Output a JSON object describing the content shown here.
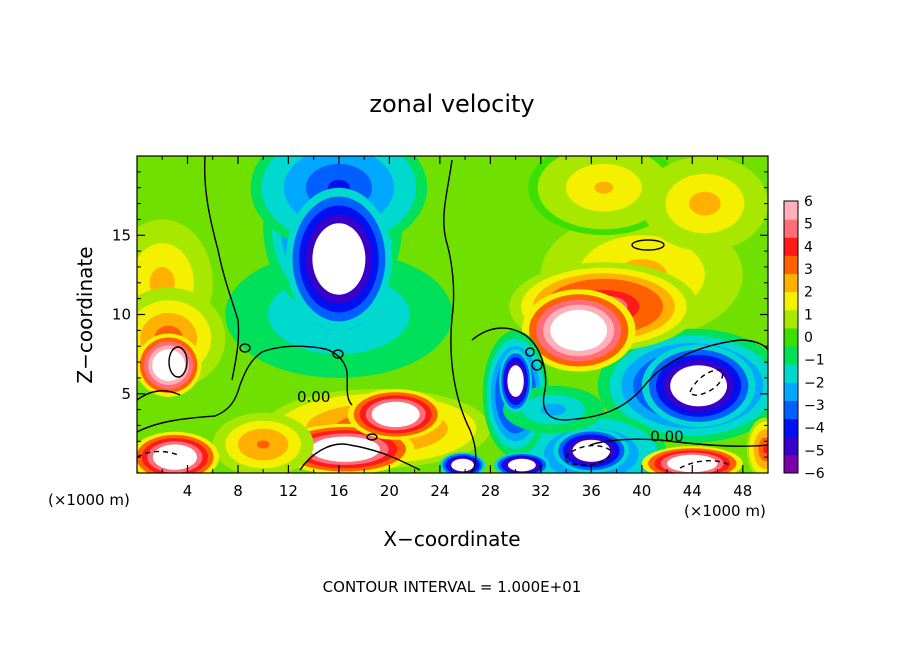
{
  "chart_data": {
    "type": "heatmap",
    "title": "zonal velocity",
    "xlabel": "X−coordinate",
    "ylabel": "Z−coordinate",
    "x_unit_label": "(×1000 m)",
    "x_unit_label_right": "(×1000 m)",
    "xlim": [
      0,
      50
    ],
    "ylim": [
      0,
      20
    ],
    "xticks": [
      4,
      8,
      12,
      16,
      20,
      24,
      28,
      32,
      36,
      40,
      44,
      48
    ],
    "yticks": [
      5,
      10,
      15
    ],
    "colorbar": {
      "min": -6,
      "max": 6,
      "ticks": [
        6,
        5,
        4,
        3,
        2,
        1,
        0,
        -1,
        -2,
        -3,
        -4,
        -5,
        -6
      ],
      "tick_labels": [
        "6",
        "5",
        "4",
        "3",
        "2",
        "1",
        "0",
        "−1",
        "−2",
        "−3",
        "−4",
        "−5",
        "−6"
      ],
      "colors": [
        "#7a00a8",
        "#3800c8",
        "#0010f0",
        "#0060ff",
        "#00a8ff",
        "#00d8d0",
        "#00e05a",
        "#3ce000",
        "#a8e800",
        "#f5f000",
        "#ffb000",
        "#ff6000",
        "#ff1a1a",
        "#ff6e78",
        "#ffb0b8"
      ]
    },
    "features": [
      {
        "x": 16,
        "z": 13.5,
        "value": -9,
        "rx": 4.2,
        "rz": 4.5
      },
      {
        "x": 15.5,
        "z": 15.5,
        "value": -5,
        "rx": 5.5,
        "rz": 5.5
      },
      {
        "x": 16,
        "z": 18,
        "value": -4,
        "rx": 7,
        "rz": 4
      },
      {
        "x": 16,
        "z": 10,
        "value": -2.5,
        "rx": 9,
        "rz": 4
      },
      {
        "x": 2.5,
        "z": 6.8,
        "value": 10,
        "rx": 2.6,
        "rz": 2.0
      },
      {
        "x": 2.5,
        "z": 8.5,
        "value": 3.5,
        "rx": 4.5,
        "rz": 3.2
      },
      {
        "x": 2,
        "z": 12,
        "value": 2.5,
        "rx": 4,
        "rz": 4
      },
      {
        "x": 35,
        "z": 9,
        "value": 10,
        "rx": 4.5,
        "rz": 2.6
      },
      {
        "x": 37,
        "z": 10.5,
        "value": 5,
        "rx": 7.5,
        "rz": 2.8
      },
      {
        "x": 40,
        "z": 12.5,
        "value": 2.5,
        "rx": 8,
        "rz": 4
      },
      {
        "x": 37,
        "z": 18,
        "value": 2,
        "rx": 6,
        "rz": 3
      },
      {
        "x": 45,
        "z": 17,
        "value": 2.5,
        "rx": 5,
        "rz": 3
      },
      {
        "x": 20.5,
        "z": 3.7,
        "value": 9,
        "rx": 3.8,
        "rz": 1.6
      },
      {
        "x": 16.5,
        "z": 1.5,
        "value": 9,
        "rx": 5.5,
        "rz": 1.6
      },
      {
        "x": 19,
        "z": 2.8,
        "value": 4,
        "rx": 9,
        "rz": 2.5
      },
      {
        "x": 10,
        "z": 1.8,
        "value": 3,
        "rx": 4,
        "rz": 2
      },
      {
        "x": 3,
        "z": 1,
        "value": 9,
        "rx": 3.5,
        "rz": 1.6
      },
      {
        "x": 30,
        "z": 5.8,
        "value": -9,
        "rx": 1.3,
        "rz": 2.0
      },
      {
        "x": 30,
        "z": 5,
        "value": -5,
        "rx": 2.6,
        "rz": 4
      },
      {
        "x": 25.8,
        "z": 0.5,
        "value": -9,
        "rx": 1.8,
        "rz": 0.8
      },
      {
        "x": 30.5,
        "z": 0.5,
        "value": -9,
        "rx": 2.2,
        "rz": 0.8
      },
      {
        "x": 36,
        "z": 1.4,
        "value": -9,
        "rx": 3,
        "rz": 1.4
      },
      {
        "x": 36,
        "z": 1.2,
        "value": -4,
        "rx": 6,
        "rz": 2.6
      },
      {
        "x": 44.5,
        "z": 5.5,
        "value": -9,
        "rx": 4.5,
        "rz": 2.6
      },
      {
        "x": 44,
        "z": 5.5,
        "value": -5,
        "rx": 7.5,
        "rz": 3.6
      },
      {
        "x": 44,
        "z": 0.6,
        "value": 9,
        "rx": 4,
        "rz": 1.1
      },
      {
        "x": 49.8,
        "z": 1.5,
        "value": 4,
        "rx": 1.5,
        "rz": 2
      },
      {
        "x": 33,
        "z": 4,
        "value": -2.5,
        "rx": 4,
        "rz": 1.5
      }
    ],
    "contour_labels": [
      {
        "x": 14,
        "z": 4.8,
        "text": "0.00"
      },
      {
        "x": 42,
        "z": 2.3,
        "text": "0.00"
      }
    ]
  },
  "footer": "CONTOUR INTERVAL = 1.000E+01"
}
